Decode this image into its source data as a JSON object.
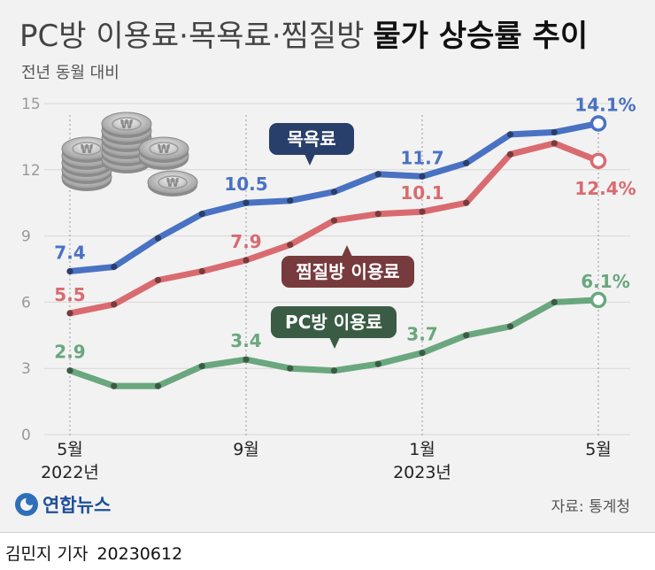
{
  "title": {
    "light": "PC방 이용료·목욕료·찜질방",
    "bold": "물가 상승률 추이"
  },
  "subtitle": "전년 동월 대비",
  "source": "자료: 통계청",
  "logo": {
    "text": "연합뉴스",
    "icon": "yonhap-logo-icon"
  },
  "byline": {
    "reporter": "김민지 기자",
    "date": "20230612"
  },
  "colors": {
    "blue": "#4a72c3",
    "red": "#d96b70",
    "green": "#6aa77e"
  },
  "chart_data": {
    "type": "line",
    "ylim": [
      0,
      15
    ],
    "yticks": [
      0,
      3,
      6,
      9,
      12,
      15
    ],
    "x": [
      "2022-05",
      "2022-06",
      "2022-07",
      "2022-08",
      "2022-09",
      "2022-10",
      "2022-11",
      "2022-12",
      "2023-01",
      "2023-02",
      "2023-03",
      "2023-04",
      "2023-05"
    ],
    "xtick_labels": [
      {
        "index": 0,
        "lines": [
          "5월",
          "2022년"
        ]
      },
      {
        "index": 4,
        "lines": [
          "9월"
        ]
      },
      {
        "index": 8,
        "lines": [
          "1월",
          "2023년"
        ]
      },
      {
        "index": 12,
        "lines": [
          "5월"
        ]
      }
    ],
    "series": [
      {
        "name": "목욕료",
        "color": "#4a72c3",
        "values": [
          7.4,
          7.6,
          8.9,
          10.0,
          10.5,
          10.6,
          11.0,
          11.8,
          11.7,
          12.3,
          13.6,
          13.7,
          14.1
        ]
      },
      {
        "name": "찜질방 이용료",
        "color": "#d96b70",
        "values": [
          5.5,
          5.9,
          7.0,
          7.4,
          7.9,
          8.6,
          9.7,
          10.0,
          10.1,
          10.5,
          12.7,
          13.2,
          12.4
        ]
      },
      {
        "name": "PC방 이용료",
        "color": "#6aa77e",
        "values": [
          2.9,
          2.2,
          2.2,
          3.1,
          3.4,
          3.0,
          2.9,
          3.2,
          3.7,
          4.5,
          4.9,
          6.0,
          6.1
        ]
      }
    ],
    "data_labels": [
      {
        "series": 0,
        "index": 0,
        "text": "7.4"
      },
      {
        "series": 0,
        "index": 4,
        "text": "10.5"
      },
      {
        "series": 0,
        "index": 8,
        "text": "11.7"
      },
      {
        "series": 0,
        "index": 12,
        "text": "14.1%"
      },
      {
        "series": 1,
        "index": 0,
        "text": "5.5"
      },
      {
        "series": 1,
        "index": 4,
        "text": "7.9"
      },
      {
        "series": 1,
        "index": 8,
        "text": "10.1"
      },
      {
        "series": 1,
        "index": 12,
        "text": "12.4%"
      },
      {
        "series": 2,
        "index": 0,
        "text": "2.9"
      },
      {
        "series": 2,
        "index": 4,
        "text": "3.4"
      },
      {
        "series": 2,
        "index": 8,
        "text": "3.7"
      },
      {
        "series": 2,
        "index": 12,
        "text": "6.1%"
      }
    ],
    "legend_callouts": [
      {
        "series": 0,
        "text": "목욕료"
      },
      {
        "series": 1,
        "text": "찜질방 이용료"
      },
      {
        "series": 2,
        "text": "PC방 이용료"
      }
    ]
  }
}
